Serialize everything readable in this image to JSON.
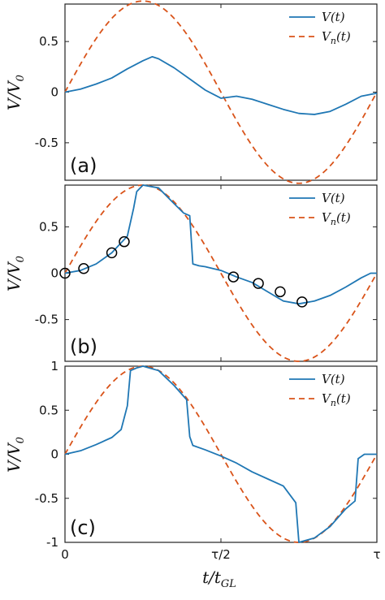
{
  "colors": {
    "measured": "#1f77b4",
    "model": "#d95319",
    "marker": "#000000"
  },
  "xlabel": {
    "main": "t/t",
    "sub": "GL"
  },
  "ylabel": {
    "main": "V/V",
    "sub": "0"
  },
  "x_tick_labels": [
    "0",
    "τ/2",
    "τ"
  ],
  "legend_labels": {
    "measured_main": "V(t)",
    "model_main": "V",
    "model_sub": "n",
    "model_tail": "(t)"
  },
  "chart_data": [
    {
      "type": "line",
      "panel": "(a)",
      "xlim": [
        0,
        1
      ],
      "ylim": [
        -0.87,
        0.87
      ],
      "yticks": [
        0.5,
        0,
        -0.5
      ],
      "ytick_labels": [
        "0.5",
        "0",
        "-0.5"
      ],
      "legend": "top-right",
      "series": [
        {
          "name": "V(t)",
          "style": "solid",
          "x": [
            0,
            0.05,
            0.1,
            0.15,
            0.2,
            0.25,
            0.28,
            0.3,
            0.35,
            0.4,
            0.45,
            0.5,
            0.55,
            0.6,
            0.65,
            0.7,
            0.75,
            0.8,
            0.85,
            0.9,
            0.95,
            1.0
          ],
          "y": [
            0,
            0.03,
            0.08,
            0.14,
            0.23,
            0.31,
            0.35,
            0.33,
            0.24,
            0.13,
            0.02,
            -0.06,
            -0.04,
            -0.07,
            -0.12,
            -0.17,
            -0.21,
            -0.22,
            -0.19,
            -0.12,
            -0.04,
            -0.01
          ]
        },
        {
          "name": "V_n(t)",
          "style": "dashed",
          "function": "0.9*sin(2*pi*x)"
        }
      ]
    },
    {
      "type": "line",
      "panel": "(b)",
      "xlim": [
        0,
        1
      ],
      "ylim": [
        -0.95,
        0.95
      ],
      "yticks": [
        0.5,
        0,
        -0.5
      ],
      "ytick_labels": [
        "0.5",
        "0",
        "-0.5"
      ],
      "legend": "top-right",
      "series": [
        {
          "name": "V(t)",
          "style": "solid",
          "x": [
            0,
            0.05,
            0.1,
            0.15,
            0.2,
            0.22,
            0.23,
            0.25,
            0.3,
            0.35,
            0.38,
            0.4,
            0.41,
            0.43,
            0.45,
            0.5,
            0.55,
            0.6,
            0.65,
            0.7,
            0.75,
            0.8,
            0.85,
            0.9,
            0.95,
            0.98,
            1.0
          ],
          "y": [
            0,
            0.03,
            0.1,
            0.22,
            0.4,
            0.7,
            0.88,
            0.95,
            0.92,
            0.75,
            0.65,
            0.62,
            0.1,
            0.08,
            0.07,
            0.03,
            -0.04,
            -0.1,
            -0.2,
            -0.3,
            -0.33,
            -0.3,
            -0.24,
            -0.15,
            -0.05,
            0.0,
            0.0
          ]
        },
        {
          "name": "V_n(t)",
          "style": "dashed",
          "function": "0.95*sin(2*pi*x)"
        }
      ],
      "markers": {
        "x": [
          0.0,
          0.06,
          0.15,
          0.19,
          0.54,
          0.62,
          0.69,
          0.76
        ],
        "y": [
          0.0,
          0.05,
          0.22,
          0.34,
          -0.04,
          -0.11,
          -0.2,
          -0.31
        ]
      }
    },
    {
      "type": "line",
      "panel": "(c)",
      "xlim": [
        0,
        1
      ],
      "ylim": [
        -1,
        1
      ],
      "yticks": [
        1,
        0.5,
        0,
        -0.5,
        -1
      ],
      "ytick_labels": [
        "1",
        "0.5",
        "0",
        "-0.5",
        "-1"
      ],
      "legend": "top-right",
      "series": [
        {
          "name": "V(t)",
          "style": "solid",
          "x": [
            0,
            0.05,
            0.1,
            0.15,
            0.18,
            0.2,
            0.21,
            0.23,
            0.25,
            0.3,
            0.35,
            0.39,
            0.4,
            0.41,
            0.45,
            0.5,
            0.55,
            0.6,
            0.65,
            0.7,
            0.74,
            0.75,
            0.76,
            0.8,
            0.85,
            0.9,
            0.93,
            0.94,
            0.96,
            1.0
          ],
          "y": [
            0,
            0.04,
            0.11,
            0.19,
            0.28,
            0.55,
            0.95,
            0.98,
            1.0,
            0.95,
            0.78,
            0.62,
            0.2,
            0.1,
            0.05,
            -0.02,
            -0.1,
            -0.2,
            -0.28,
            -0.36,
            -0.55,
            -1.0,
            -0.99,
            -0.95,
            -0.82,
            -0.62,
            -0.53,
            -0.05,
            0.0,
            0.0
          ]
        },
        {
          "name": "V_n(t)",
          "style": "dashed",
          "function": "1.0*sin(2*pi*x)"
        }
      ]
    }
  ]
}
